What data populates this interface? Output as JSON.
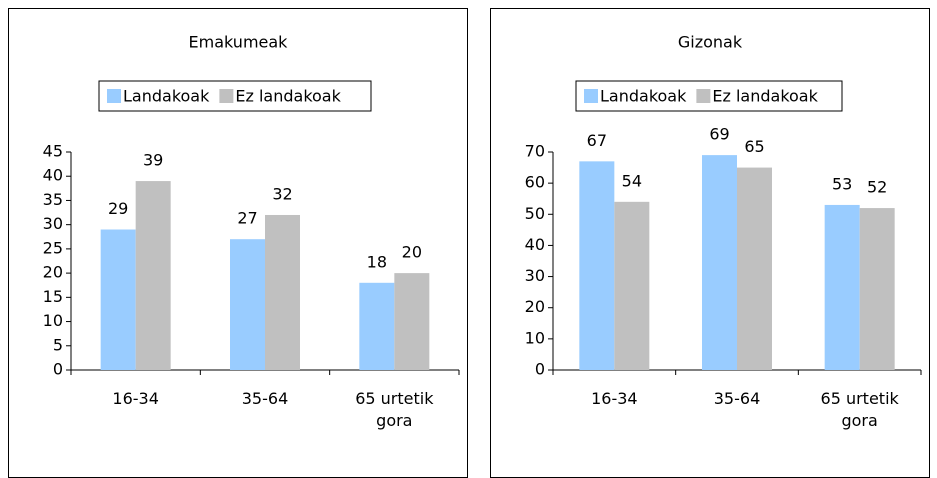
{
  "chart_data": [
    {
      "type": "bar",
      "title": "Emakumeak",
      "categories": [
        "16-34",
        "35-64",
        "65 urtetik gora"
      ],
      "series": [
        {
          "name": "Landakoak",
          "color": "#99ccff",
          "values": [
            29,
            27,
            18
          ]
        },
        {
          "name": "Ez landakoak",
          "color": "#c0c0c0",
          "values": [
            39,
            32,
            20
          ]
        }
      ],
      "ylim": [
        0,
        45
      ],
      "yticks": [
        0,
        5,
        10,
        15,
        20,
        25,
        30,
        35,
        40,
        45
      ],
      "legend": "top"
    },
    {
      "type": "bar",
      "title": "Gizonak",
      "categories": [
        "16-34",
        "35-64",
        "65 urtetik gora"
      ],
      "series": [
        {
          "name": "Landakoak",
          "color": "#99ccff",
          "values": [
            67,
            69,
            53
          ]
        },
        {
          "name": "Ez landakoak",
          "color": "#c0c0c0",
          "values": [
            54,
            65,
            52
          ]
        }
      ],
      "ylim": [
        0,
        70
      ],
      "yticks": [
        0,
        10,
        20,
        30,
        40,
        50,
        60,
        70
      ],
      "legend": "top"
    }
  ]
}
